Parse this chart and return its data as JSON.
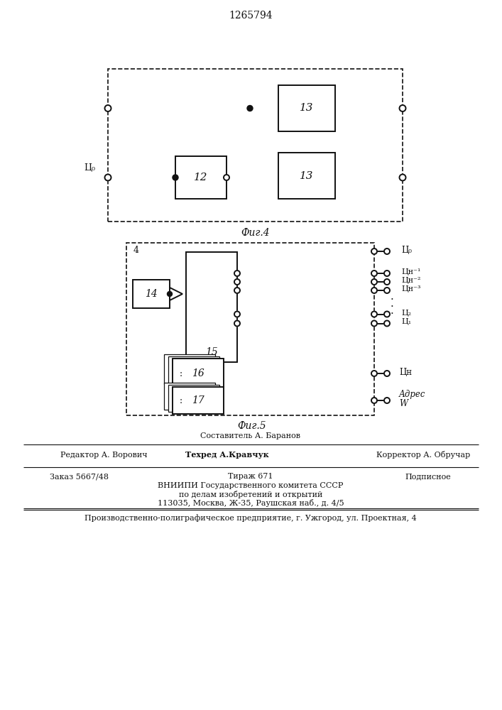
{
  "title": "1265794",
  "fig4_caption": "Фиг.4",
  "fig5_caption": "Фиг.5",
  "lc": "#111111",
  "footer": {
    "sestavitel": "Составитель А. Баранов",
    "redaktor": "Редактор А. Ворович",
    "tekhred": "Техред А.Кравчук",
    "korrektor": "Корректор А. Обручар",
    "zakaz": "Заказ 5667/48",
    "tirazh": "Тираж 671",
    "podpisnoe": "Подписное",
    "vniipi1": "ВНИИПИ Государственного комитета СССР",
    "vniipi2": "по делам изобретений и открытий",
    "vniipi3": "113035, Москва, Ж-35, Раушская наб., д. 4/5",
    "predpr": "Производственно-полиграфическое предприятие, г. Ужгород, ул. Проектная, 4"
  }
}
